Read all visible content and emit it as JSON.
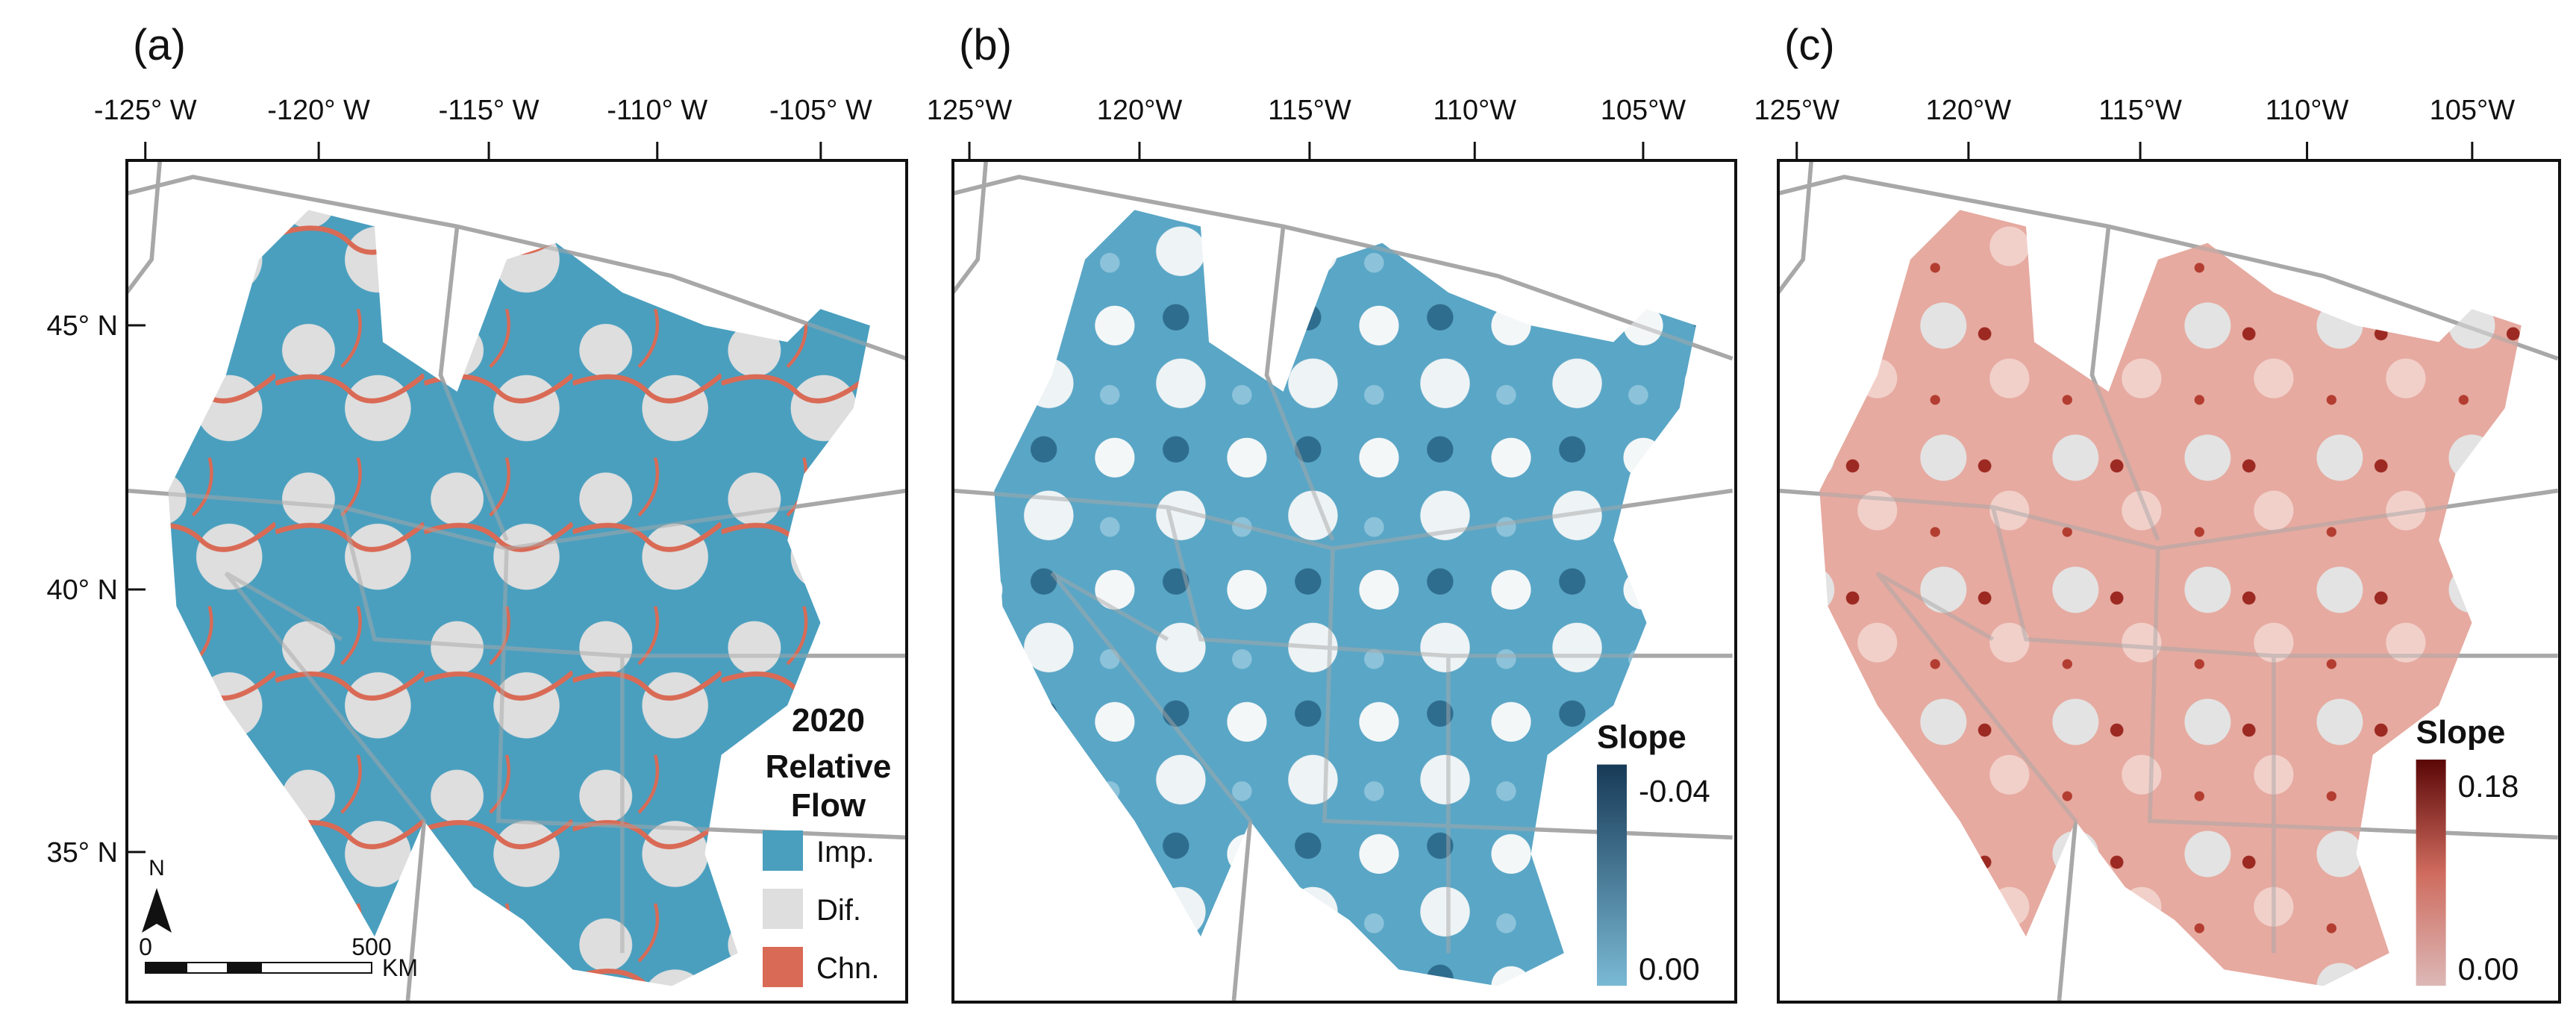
{
  "panels": [
    {
      "label": "(a)",
      "longitudes": [
        "-125° W",
        "-120° W",
        "-115° W",
        "-110° W",
        "-105° W"
      ],
      "latitudes": [
        "45° N",
        "40° N",
        "35° N"
      ],
      "legend": {
        "title": [
          "2020",
          "Relative",
          "Flow"
        ],
        "items": [
          "Imp.",
          "Dif.",
          "Chn."
        ]
      },
      "north": "N",
      "scale_bar": {
        "start": "0",
        "end": "500",
        "unit": "KM"
      }
    },
    {
      "label": "(b)",
      "longitudes": [
        "125°W",
        "120°W",
        "115°W",
        "110°W",
        "105°W"
      ],
      "colorbar": {
        "title": "Slope",
        "top": "-0.04",
        "bottom": "0.00"
      }
    },
    {
      "label": "(c)",
      "longitudes": [
        "125°W",
        "120°W",
        "115°W",
        "110°W",
        "105°W"
      ],
      "colorbar": {
        "title": "Slope",
        "top": "0.18",
        "bottom": "0.00"
      }
    }
  ]
}
